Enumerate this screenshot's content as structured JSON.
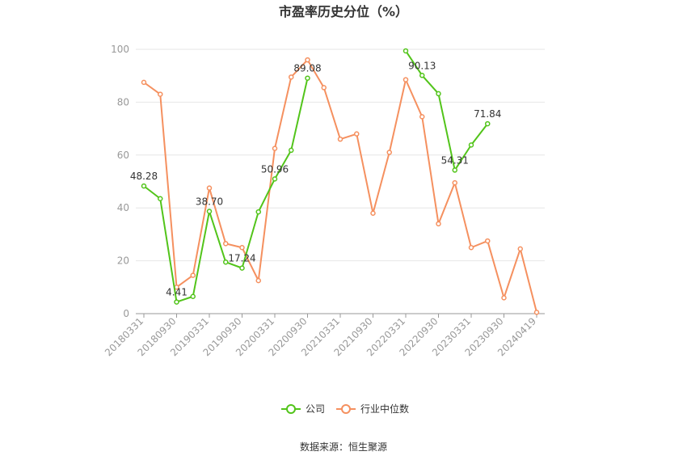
{
  "chart_data": {
    "type": "line",
    "title": "市盈率历史分位（%）",
    "source": "数据来源：恒生聚源",
    "ylim": [
      0,
      100
    ],
    "yticks": [
      "0",
      "20",
      "40",
      "60",
      "80",
      "100"
    ],
    "grid": true,
    "legend_position": "bottom",
    "x_tick_labels": [
      "20180331",
      "20180930",
      "20190331",
      "20190930",
      "20200331",
      "20200930",
      "20210331",
      "20210930",
      "20220331",
      "20220930",
      "20230331",
      "20230930",
      "20240419"
    ],
    "series": [
      {
        "name": "公司",
        "color": "#52c41a",
        "values": [
          48.28,
          43.5,
          4.41,
          6.5,
          38.7,
          19.5,
          17.24,
          38.5,
          50.96,
          61.8,
          89.08,
          null,
          null,
          null,
          null,
          null,
          99.4,
          90.13,
          83.2,
          54.31,
          63.8,
          71.84,
          null,
          null,
          null,
          null
        ]
      },
      {
        "name": "行业中位数",
        "color": "#f5905f",
        "values": [
          87.5,
          83.0,
          10.0,
          14.5,
          47.5,
          26.5,
          25.0,
          12.5,
          62.5,
          89.5,
          96.0,
          85.5,
          66.0,
          68.0,
          38.0,
          61.0,
          88.5,
          74.5,
          34.0,
          49.5,
          25.0,
          27.5,
          6.0,
          24.5,
          0.5
        ]
      }
    ],
    "data_labels": [
      {
        "series": 0,
        "index": 0,
        "text": "48.28"
      },
      {
        "series": 0,
        "index": 2,
        "text": "4.41"
      },
      {
        "series": 0,
        "index": 4,
        "text": "38.70"
      },
      {
        "series": 0,
        "index": 6,
        "text": "17.24"
      },
      {
        "series": 0,
        "index": 8,
        "text": "50.96"
      },
      {
        "series": 0,
        "index": 10,
        "text": "89.08"
      },
      {
        "series": 0,
        "index": 17,
        "text": "90.13"
      },
      {
        "series": 0,
        "index": 19,
        "text": "54.31"
      },
      {
        "series": 0,
        "index": 21,
        "text": "71.84"
      }
    ]
  }
}
